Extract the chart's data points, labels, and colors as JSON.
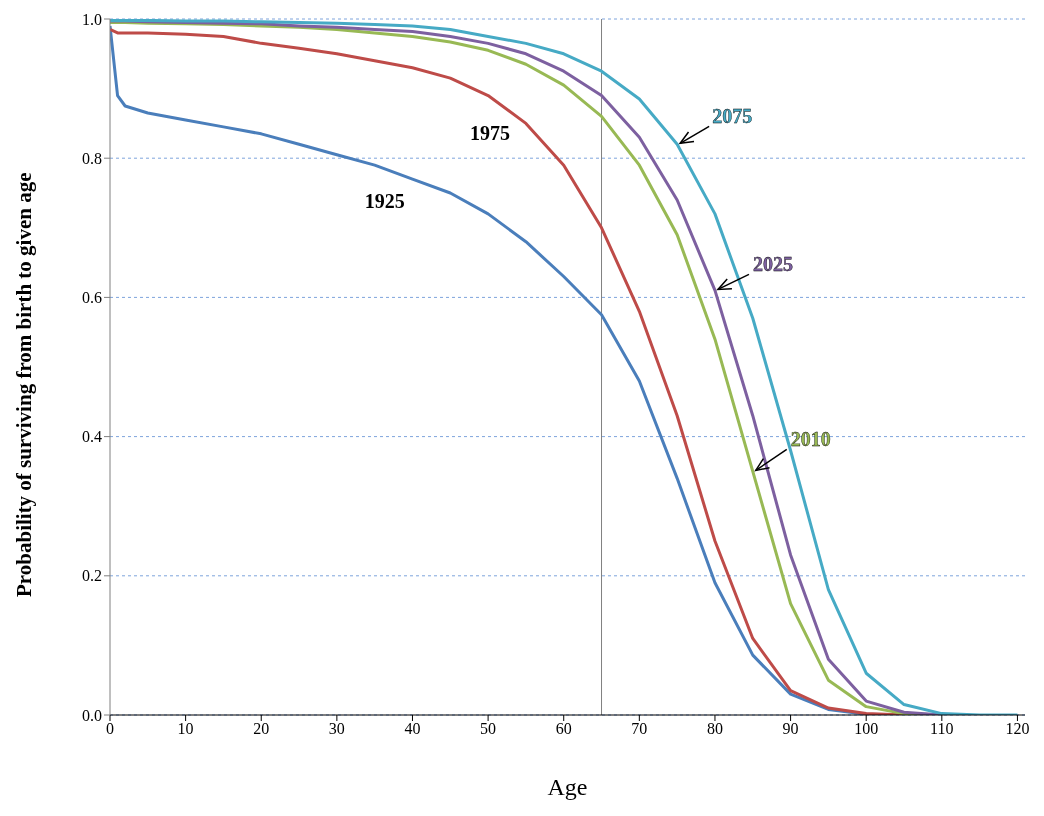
{
  "chart_data": {
    "type": "line",
    "xlabel": "Age",
    "ylabel": "Probability of surviving from birth to given age",
    "x": [
      0,
      1,
      2,
      5,
      10,
      15,
      20,
      25,
      30,
      35,
      40,
      45,
      50,
      55,
      60,
      65,
      70,
      75,
      80,
      85,
      90,
      95,
      100,
      105,
      110,
      115,
      120
    ],
    "series": [
      {
        "name": "1925",
        "color": "#4a7ebb",
        "values": [
          0.99,
          0.89,
          0.875,
          0.865,
          0.855,
          0.845,
          0.835,
          0.82,
          0.805,
          0.79,
          0.77,
          0.75,
          0.72,
          0.68,
          0.63,
          0.575,
          0.48,
          0.34,
          0.19,
          0.086,
          0.03,
          0.008,
          0.001,
          0,
          0,
          null,
          null
        ]
      },
      {
        "name": "1975",
        "color": "#be4b48",
        "values": [
          0.985,
          0.98,
          0.98,
          0.98,
          0.978,
          0.975,
          0.965,
          0.958,
          0.95,
          0.94,
          0.93,
          0.915,
          0.89,
          0.85,
          0.79,
          0.7,
          0.58,
          0.43,
          0.25,
          0.11,
          0.035,
          0.01,
          0.002,
          0,
          0,
          null,
          null
        ]
      },
      {
        "name": "2010",
        "color": "#98b954",
        "values": [
          0.995,
          0.995,
          0.995,
          0.994,
          0.993,
          0.992,
          0.99,
          0.988,
          0.985,
          0.98,
          0.975,
          0.967,
          0.955,
          0.935,
          0.905,
          0.86,
          0.79,
          0.69,
          0.54,
          0.35,
          0.16,
          0.05,
          0.012,
          0.002,
          0,
          null,
          null
        ]
      },
      {
        "name": "2025",
        "color": "#7d60a0",
        "values": [
          0.997,
          0.997,
          0.997,
          0.996,
          0.995,
          0.994,
          0.993,
          0.99,
          0.988,
          0.985,
          0.982,
          0.975,
          0.965,
          0.95,
          0.925,
          0.89,
          0.83,
          0.74,
          0.61,
          0.43,
          0.23,
          0.08,
          0.02,
          0.004,
          0,
          null,
          null
        ]
      },
      {
        "name": "2075",
        "color": "#46aac5",
        "values": [
          0.998,
          0.998,
          0.998,
          0.998,
          0.997,
          0.997,
          0.996,
          0.995,
          0.994,
          0.992,
          0.99,
          0.985,
          0.975,
          0.965,
          0.95,
          0.925,
          0.885,
          0.82,
          0.72,
          0.57,
          0.38,
          0.18,
          0.06,
          0.015,
          0.002,
          0,
          0
        ]
      }
    ],
    "xlim": [
      0,
      121
    ],
    "xticks": [
      0,
      10,
      20,
      30,
      40,
      50,
      60,
      70,
      80,
      90,
      100,
      110,
      120
    ],
    "ylim": [
      0,
      1
    ],
    "yticks": [
      {
        "value": 0,
        "label": "0.0"
      },
      {
        "value": 0.2,
        "label": "0.2"
      },
      {
        "value": 0.4,
        "label": "0.4"
      },
      {
        "value": 0.6,
        "label": "0.6"
      },
      {
        "value": 0.8,
        "label": "0.8"
      },
      {
        "value": 1,
        "label": "1.0"
      }
    ],
    "grid": "y",
    "legend": false,
    "marker": "none",
    "line_style": "solid",
    "ref_lines": [
      {
        "axis": "x",
        "value": 65,
        "color": "#808080"
      }
    ]
  }
}
